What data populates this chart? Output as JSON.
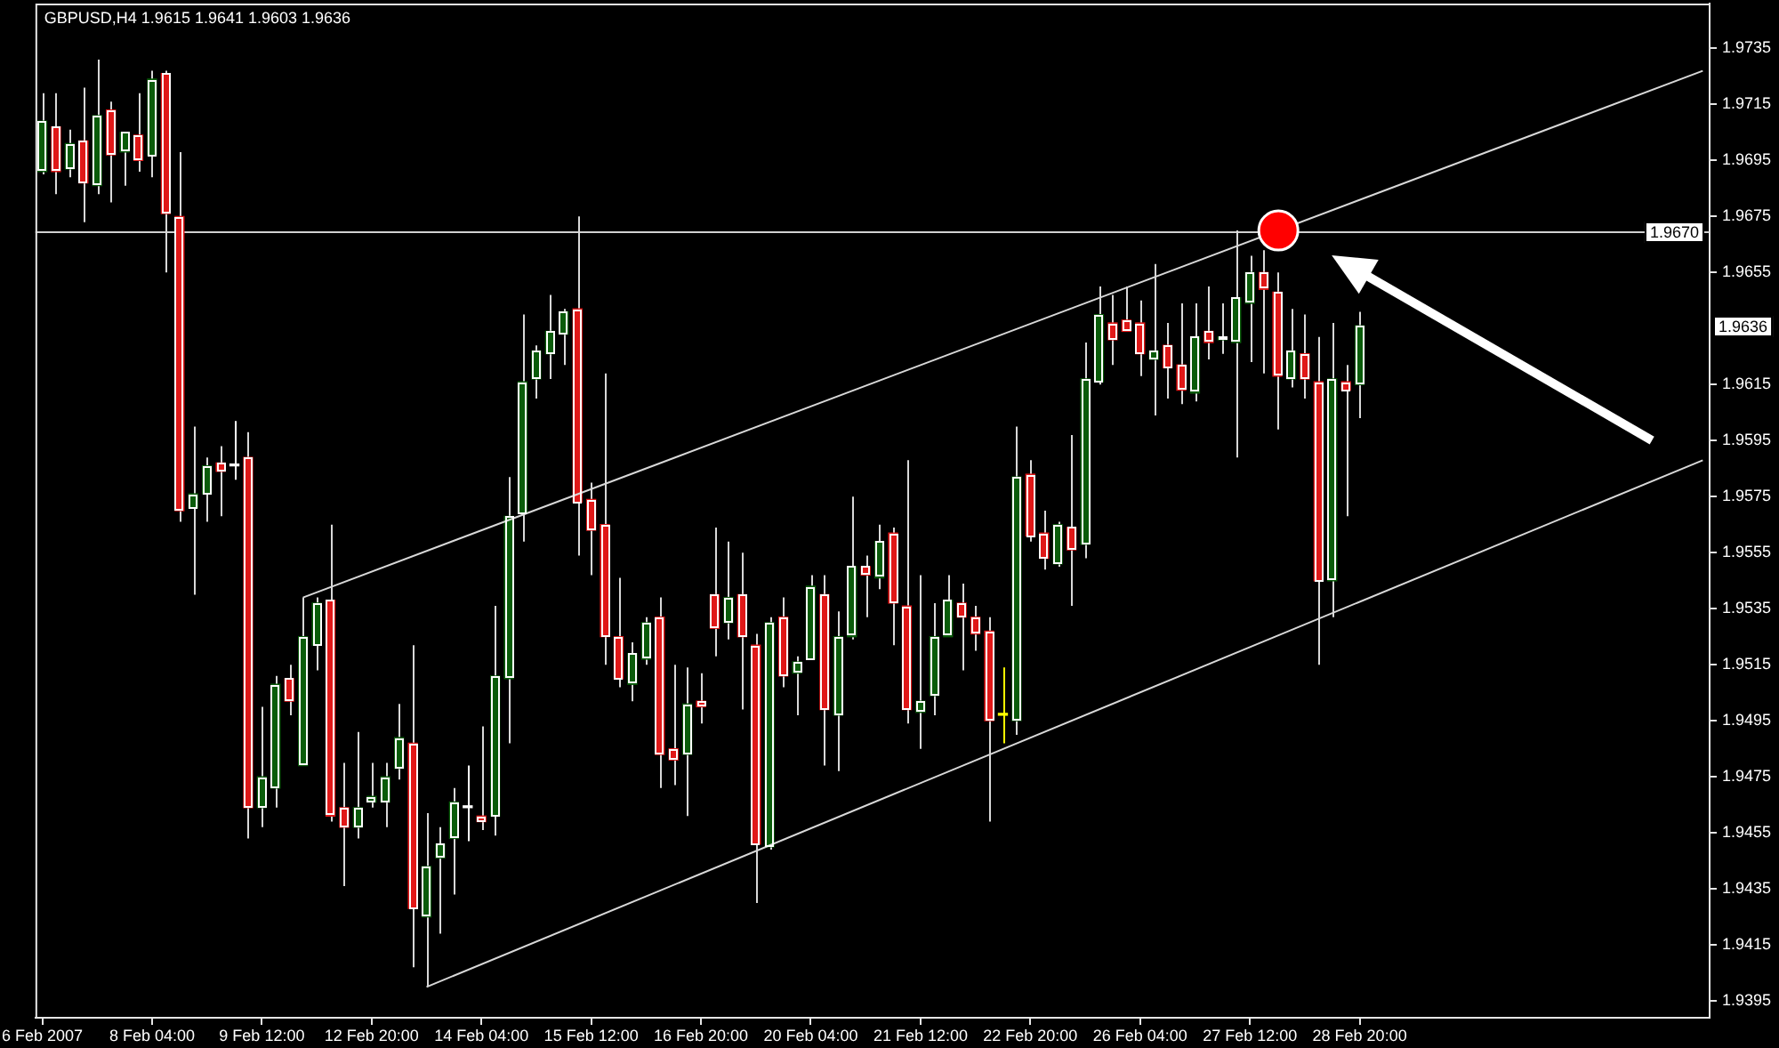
{
  "chart_data": {
    "type": "candlestick",
    "title": "GBPUSD,H4 1.9615 1.9641 1.9603 1.9636",
    "categories": [
      "6 Feb 2007",
      null,
      null,
      null,
      null,
      null,
      null,
      null,
      "8 Feb 04:00",
      null,
      null,
      null,
      null,
      null,
      null,
      null,
      "9 Feb 12:00",
      null,
      null,
      null,
      null,
      null,
      null,
      null,
      "12 Feb 20:00",
      null,
      null,
      null,
      null,
      null,
      null,
      null,
      "14 Feb 04:00",
      null,
      null,
      null,
      null,
      null,
      null,
      null,
      "15 Feb 12:00",
      null,
      null,
      null,
      null,
      null,
      null,
      null,
      "16 Feb 20:00",
      null,
      null,
      null,
      null,
      null,
      null,
      null,
      "20 Feb 04:00",
      null,
      null,
      null,
      null,
      null,
      null,
      null,
      "21 Feb 12:00",
      null,
      null,
      null,
      null,
      null,
      null,
      null,
      "22 Feb 20:00",
      null,
      null,
      null,
      null,
      null,
      null,
      null,
      "26 Feb 04:00",
      null,
      null,
      null,
      null,
      null,
      null,
      null,
      "27 Feb 12:00",
      null,
      null,
      null,
      null,
      null,
      null,
      null,
      "28 Feb 20:00",
      null,
      null,
      null,
      null,
      null,
      null,
      null,
      null,
      null,
      null,
      null,
      null,
      null,
      null,
      null,
      null,
      null,
      null,
      null,
      null,
      null,
      null,
      null,
      null,
      null
    ],
    "ohlc": [
      [
        1.9691,
        1.9719,
        1.969,
        1.9709
      ],
      [
        1.9707,
        1.9719,
        1.9683,
        1.9691
      ],
      [
        1.9692,
        1.9706,
        1.9689,
        1.9701
      ],
      [
        1.9702,
        1.9721,
        1.9673,
        1.9687
      ],
      [
        1.9686,
        1.9731,
        1.9683,
        1.9711
      ],
      [
        1.9713,
        1.9716,
        1.968,
        1.9697
      ],
      [
        1.9698,
        1.9705,
        1.9686,
        1.9705
      ],
      [
        1.9704,
        1.9719,
        1.9691,
        1.9695
      ],
      [
        1.9697,
        1.9727,
        1.9689,
        1.9724
      ],
      [
        1.9726,
        1.9727,
        1.9655,
        1.9676
      ],
      [
        1.9675,
        1.9698,
        1.9566,
        1.957
      ],
      [
        1.9571,
        1.96,
        1.954,
        1.9576
      ],
      [
        1.9576,
        1.9589,
        1.9566,
        1.9586
      ],
      [
        1.9587,
        1.9593,
        1.9568,
        1.9584
      ],
      [
        1.9586,
        1.9602,
        1.9581,
        1.9586
      ],
      [
        1.9589,
        1.9598,
        1.9453,
        1.9464
      ],
      [
        1.9464,
        1.95,
        1.9457,
        1.9475
      ],
      [
        1.9471,
        1.9511,
        1.9464,
        1.9508
      ],
      [
        1.951,
        1.9515,
        1.9497,
        1.9502
      ],
      [
        1.9479,
        1.9539,
        1.9479,
        1.9525
      ],
      [
        1.9522,
        1.9539,
        1.9513,
        1.9537
      ],
      [
        1.9538,
        1.9565,
        1.9459,
        1.9461
      ],
      [
        1.9464,
        1.948,
        1.9436,
        1.9457
      ],
      [
        1.9457,
        1.9491,
        1.9453,
        1.9464
      ],
      [
        1.9466,
        1.948,
        1.9464,
        1.9468
      ],
      [
        1.9466,
        1.948,
        1.9457,
        1.9475
      ],
      [
        1.9478,
        1.9501,
        1.9474,
        1.9489
      ],
      [
        1.9487,
        1.9522,
        1.9407,
        1.9428
      ],
      [
        1.9425,
        1.9462,
        1.94,
        1.9443
      ],
      [
        1.9446,
        1.9457,
        1.9419,
        1.9451
      ],
      [
        1.9453,
        1.9471,
        1.9433,
        1.9466
      ],
      [
        1.9464,
        1.9479,
        1.9452,
        1.9464
      ],
      [
        1.9461,
        1.9493,
        1.9456,
        1.9459
      ],
      [
        1.9461,
        1.9536,
        1.9454,
        1.9511
      ],
      [
        1.951,
        1.9582,
        1.9487,
        1.9568
      ],
      [
        1.9569,
        1.964,
        1.9559,
        1.9616
      ],
      [
        1.9617,
        1.9629,
        1.961,
        1.9627
      ],
      [
        1.9626,
        1.9647,
        1.9617,
        1.9634
      ],
      [
        1.9633,
        1.9642,
        1.9622,
        1.9641
      ],
      [
        1.9642,
        1.9675,
        1.9554,
        1.9573
      ],
      [
        1.9574,
        1.958,
        1.9547,
        1.9563
      ],
      [
        1.9565,
        1.9619,
        1.9515,
        1.9525
      ],
      [
        1.9525,
        1.9546,
        1.9507,
        1.951
      ],
      [
        1.9508,
        1.9523,
        1.9502,
        1.9519
      ],
      [
        1.9517,
        1.9532,
        1.9515,
        1.953
      ],
      [
        1.9532,
        1.9539,
        1.9471,
        1.9483
      ],
      [
        1.9485,
        1.9515,
        1.9472,
        1.9481
      ],
      [
        1.9483,
        1.9514,
        1.9461,
        1.9501
      ],
      [
        1.9502,
        1.9512,
        1.9494,
        1.95
      ],
      [
        1.954,
        1.9564,
        1.9518,
        1.9528
      ],
      [
        1.953,
        1.9559,
        1.9524,
        1.9539
      ],
      [
        1.954,
        1.9555,
        1.9499,
        1.9525
      ],
      [
        1.9522,
        1.9526,
        1.943,
        1.9451
      ],
      [
        1.945,
        1.9532,
        1.9449,
        1.953
      ],
      [
        1.9532,
        1.9539,
        1.9507,
        1.9511
      ],
      [
        1.9512,
        1.9518,
        1.9497,
        1.9516
      ],
      [
        1.9517,
        1.9547,
        1.9517,
        1.9543
      ],
      [
        1.954,
        1.9547,
        1.9479,
        1.9499
      ],
      [
        1.9497,
        1.9534,
        1.9477,
        1.9525
      ],
      [
        1.9525,
        1.9575,
        1.9524,
        1.955
      ],
      [
        1.955,
        1.9554,
        1.9532,
        1.9547
      ],
      [
        1.9546,
        1.9565,
        1.9542,
        1.9559
      ],
      [
        1.9562,
        1.9564,
        1.9522,
        1.9537
      ],
      [
        1.9536,
        1.9588,
        1.9494,
        1.9499
      ],
      [
        1.9498,
        1.9547,
        1.9485,
        1.9502
      ],
      [
        1.9504,
        1.9537,
        1.9497,
        1.9525
      ],
      [
        1.9525,
        1.9547,
        1.9525,
        1.9538
      ],
      [
        1.9537,
        1.9544,
        1.9513,
        1.9532
      ],
      [
        1.9532,
        1.9536,
        1.952,
        1.9526
      ],
      [
        1.9527,
        1.9532,
        1.9459,
        1.9495
      ],
      [
        1.9497,
        1.9514,
        1.9487,
        1.9497
      ],
      [
        1.9495,
        1.96,
        1.949,
        1.9582
      ],
      [
        1.9583,
        1.9588,
        1.9559,
        1.9561
      ],
      [
        1.9562,
        1.957,
        1.9549,
        1.9553
      ],
      [
        1.9551,
        1.9566,
        1.955,
        1.9565
      ],
      [
        1.9564,
        1.9597,
        1.9536,
        1.9556
      ],
      [
        1.9558,
        1.963,
        1.9553,
        1.9617
      ],
      [
        1.9616,
        1.965,
        1.9615,
        1.964
      ],
      [
        1.9637,
        1.9647,
        1.9622,
        1.9631
      ],
      [
        1.9638,
        1.965,
        1.9634,
        1.9634
      ],
      [
        1.9637,
        1.9645,
        1.9618,
        1.9626
      ],
      [
        1.9624,
        1.9658,
        1.9604,
        1.9627
      ],
      [
        1.9629,
        1.9637,
        1.961,
        1.9621
      ],
      [
        1.9622,
        1.9644,
        1.9608,
        1.9613
      ],
      [
        1.9612,
        1.9644,
        1.9609,
        1.9632
      ],
      [
        1.9634,
        1.965,
        1.9624,
        1.963
      ],
      [
        1.9631,
        1.9644,
        1.9626,
        1.9632
      ],
      [
        1.963,
        1.967,
        1.9589,
        1.9646
      ],
      [
        1.9644,
        1.9661,
        1.9623,
        1.9655
      ],
      [
        1.9655,
        1.9663,
        1.9619,
        1.9649
      ],
      [
        1.9648,
        1.9655,
        1.9599,
        1.9618
      ],
      [
        1.9617,
        1.9642,
        1.9614,
        1.9627
      ],
      [
        1.9626,
        1.964,
        1.961,
        1.9617
      ],
      [
        1.9616,
        1.9632,
        1.9515,
        1.9545
      ],
      [
        1.9545,
        1.9637,
        1.9532,
        1.9617
      ],
      [
        1.9616,
        1.9622,
        1.9568,
        1.9613
      ],
      [
        1.9615,
        1.9641,
        1.9603,
        1.9636
      ],
      null,
      null,
      null,
      null,
      null,
      null,
      null,
      null,
      null,
      null,
      null,
      null,
      null,
      null,
      null,
      null,
      null,
      null,
      null,
      null,
      null,
      null,
      null,
      null,
      null
    ],
    "colors": [
      "#0a5c0a",
      "#e01818",
      "#0a5c0a",
      "#e01818",
      "#0a5c0a",
      "#e01818",
      "#0a5c0a",
      "#e01818",
      "#0a5c0a",
      "#e01818",
      "#e01818",
      "#0a5c0a",
      "#0a5c0a",
      "#e01818",
      "#ffffff",
      "#e01818",
      "#0a5c0a",
      "#0a5c0a",
      "#e01818",
      "#0a5c0a",
      "#0a5c0a",
      "#e01818",
      "#e01818",
      "#0a5c0a",
      "#0a5c0a",
      "#0a5c0a",
      "#0a5c0a",
      "#e01818",
      "#0a5c0a",
      "#0a5c0a",
      "#0a5c0a",
      "#ffffff",
      "#e01818",
      "#0a5c0a",
      "#0a5c0a",
      "#0a5c0a",
      "#0a5c0a",
      "#0a5c0a",
      "#0a5c0a",
      "#e01818",
      "#e01818",
      "#e01818",
      "#e01818",
      "#0a5c0a",
      "#0a5c0a",
      "#e01818",
      "#e01818",
      "#0a5c0a",
      "#e01818",
      "#e01818",
      "#0a5c0a",
      "#e01818",
      "#e01818",
      "#0a5c0a",
      "#e01818",
      "#0a5c0a",
      "#0a5c0a",
      "#e01818",
      "#0a5c0a",
      "#0a5c0a",
      "#e01818",
      "#0a5c0a",
      "#e01818",
      "#e01818",
      "#0a5c0a",
      "#0a5c0a",
      "#0a5c0a",
      "#e01818",
      "#e01818",
      "#e01818",
      "#ffff00",
      "#0a5c0a",
      "#e01818",
      "#e01818",
      "#0a5c0a",
      "#e01818",
      "#0a5c0a",
      "#0a5c0a",
      "#e01818",
      "#e01818",
      "#e01818",
      "#0a5c0a",
      "#e01818",
      "#e01818",
      "#0a5c0a",
      "#e01818",
      "#0a5c0a",
      "#0a5c0a",
      "#0a5c0a",
      "#e01818",
      "#e01818",
      "#0a5c0a",
      "#e01818",
      "#e01818",
      "#0a5c0a",
      "#e01818",
      "#0a5c0a",
      null,
      null,
      null,
      null,
      null,
      null,
      null,
      null,
      null,
      null,
      null,
      null,
      null,
      null,
      null,
      null,
      null,
      null,
      null,
      null,
      null,
      null,
      null,
      null,
      null
    ],
    "series": [
      {
        "type": "line",
        "color": "#d8d8d8",
        "values": [
          null,
          null,
          null,
          null,
          null,
          null,
          null,
          null,
          null,
          null,
          null,
          null,
          null,
          null,
          null,
          null,
          null,
          null,
          null,
          1.9539,
          null,
          null,
          null,
          null,
          null,
          null,
          null,
          null,
          null,
          null,
          null,
          null,
          null,
          null,
          null,
          null,
          null,
          null,
          null,
          null,
          null,
          null,
          null,
          null,
          null,
          null,
          null,
          null,
          null,
          null,
          null,
          null,
          null,
          null,
          null,
          null,
          null,
          null,
          null,
          null,
          null,
          null,
          null,
          null,
          null,
          null,
          null,
          null,
          null,
          null,
          null,
          null,
          null,
          null,
          null,
          null,
          null,
          null,
          null,
          null,
          null,
          null,
          null,
          null,
          null,
          null,
          null,
          null,
          null,
          null,
          null,
          null,
          null,
          null,
          null,
          null,
          null,
          null,
          null,
          null,
          null,
          null,
          null,
          null,
          null,
          null,
          null,
          null,
          null,
          null,
          null,
          null,
          null,
          null,
          null,
          null,
          null,
          null,
          null,
          null,
          null,
          1.9727
        ]
      },
      {
        "type": "line",
        "color": "#d8d8d8",
        "values": [
          null,
          null,
          null,
          null,
          null,
          null,
          null,
          null,
          null,
          null,
          null,
          null,
          null,
          null,
          null,
          null,
          null,
          null,
          null,
          null,
          null,
          null,
          null,
          null,
          null,
          null,
          null,
          null,
          1.94,
          null,
          null,
          null,
          null,
          null,
          null,
          null,
          null,
          null,
          null,
          null,
          null,
          null,
          null,
          null,
          null,
          null,
          null,
          null,
          null,
          null,
          null,
          null,
          null,
          null,
          null,
          null,
          null,
          null,
          null,
          null,
          null,
          null,
          null,
          null,
          null,
          null,
          null,
          null,
          null,
          null,
          null,
          null,
          null,
          null,
          null,
          null,
          null,
          null,
          null,
          null,
          null,
          null,
          null,
          null,
          null,
          null,
          null,
          null,
          null,
          null,
          null,
          null,
          null,
          null,
          null,
          null,
          null,
          null,
          null,
          null,
          null,
          null,
          null,
          null,
          null,
          null,
          null,
          null,
          null,
          null,
          null,
          null,
          null,
          null,
          null,
          null,
          null,
          null,
          null,
          null,
          null,
          1.9588
        ]
      }
    ],
    "ylim": [
      1.9389,
      1.9751
    ],
    "yticks": [
      1.9395,
      1.9415,
      1.9435,
      1.9455,
      1.9475,
      1.9495,
      1.9515,
      1.9535,
      1.9555,
      1.9575,
      1.9595,
      1.9615,
      1.9655,
      1.9675,
      1.9695,
      1.9715,
      1.9735
    ],
    "ref_lines": [
      {
        "axis": "y",
        "value": 1.967,
        "label": "1.9670",
        "color": "#d0d0d0"
      }
    ],
    "annotations": [
      {
        "text": "1.9636",
        "y": 1.9636
      }
    ]
  }
}
